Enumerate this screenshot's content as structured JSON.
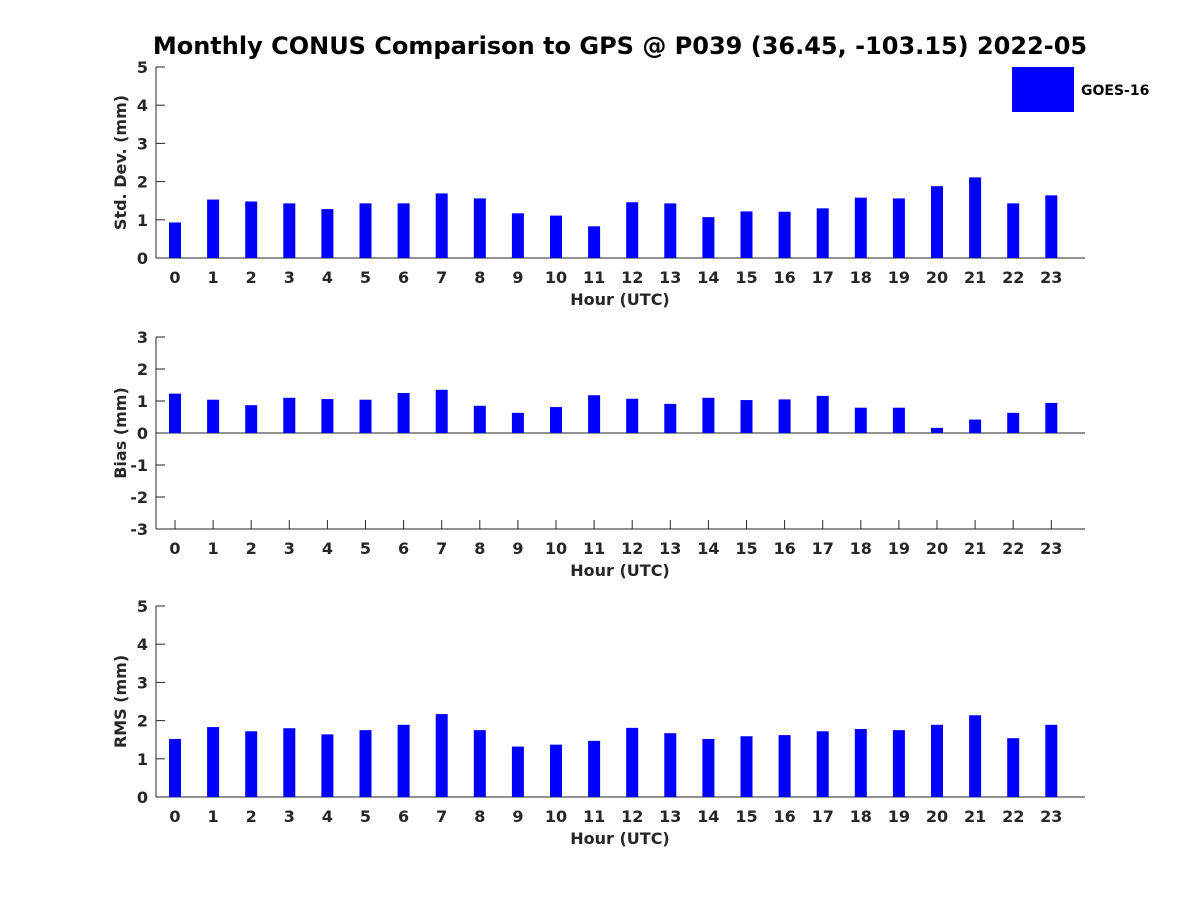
{
  "title": "Monthly CONUS Comparison to GPS @ P039 (36.45, -103.15) 2022-05",
  "legend": {
    "label": "GOES-16",
    "color": "#0000ff"
  },
  "chart_data": [
    {
      "type": "bar",
      "id": "std",
      "categories": [
        "0",
        "1",
        "2",
        "3",
        "4",
        "5",
        "6",
        "7",
        "8",
        "9",
        "10",
        "11",
        "12",
        "13",
        "14",
        "15",
        "16",
        "17",
        "18",
        "19",
        "20",
        "21",
        "22",
        "23"
      ],
      "series": [
        {
          "name": "GOES-16",
          "color": "#0000ff",
          "values": [
            0.93,
            1.53,
            1.48,
            1.43,
            1.28,
            1.43,
            1.43,
            1.69,
            1.56,
            1.17,
            1.11,
            0.83,
            1.46,
            1.43,
            1.07,
            1.22,
            1.21,
            1.3,
            1.58,
            1.56,
            1.88,
            2.11,
            1.43,
            1.64
          ]
        }
      ],
      "xlabel": "Hour (UTC)",
      "ylabel": "Std. Dev. (mm)",
      "ylim": [
        0,
        5
      ],
      "yticks": [
        "0",
        "1",
        "2",
        "3",
        "4",
        "5"
      ],
      "grid": false,
      "legend_position": "top-right"
    },
    {
      "type": "bar",
      "id": "bias",
      "categories": [
        "0",
        "1",
        "2",
        "3",
        "4",
        "5",
        "6",
        "7",
        "8",
        "9",
        "10",
        "11",
        "12",
        "13",
        "14",
        "15",
        "16",
        "17",
        "18",
        "19",
        "20",
        "21",
        "22",
        "23"
      ],
      "series": [
        {
          "name": "GOES-16",
          "color": "#0000ff",
          "values": [
            1.23,
            1.04,
            0.87,
            1.1,
            1.06,
            1.04,
            1.25,
            1.35,
            0.85,
            0.63,
            0.81,
            1.18,
            1.07,
            0.91,
            1.1,
            1.03,
            1.05,
            1.16,
            0.79,
            0.79,
            0.16,
            0.42,
            0.63,
            0.94
          ]
        }
      ],
      "xlabel": "Hour (UTC)",
      "ylabel": "Bias (mm)",
      "ylim": [
        -3,
        3
      ],
      "yticks": [
        "-3",
        "-2",
        "-1",
        "0",
        "1",
        "2",
        "3"
      ],
      "grid": false
    },
    {
      "type": "bar",
      "id": "rms",
      "categories": [
        "0",
        "1",
        "2",
        "3",
        "4",
        "5",
        "6",
        "7",
        "8",
        "9",
        "10",
        "11",
        "12",
        "13",
        "14",
        "15",
        "16",
        "17",
        "18",
        "19",
        "20",
        "21",
        "22",
        "23"
      ],
      "series": [
        {
          "name": "GOES-16",
          "color": "#0000ff",
          "values": [
            1.52,
            1.83,
            1.72,
            1.8,
            1.64,
            1.75,
            1.89,
            2.17,
            1.75,
            1.32,
            1.37,
            1.47,
            1.81,
            1.67,
            1.52,
            1.59,
            1.62,
            1.72,
            1.78,
            1.75,
            1.89,
            2.14,
            1.54,
            1.89
          ]
        }
      ],
      "xlabel": "Hour (UTC)",
      "ylabel": "RMS (mm)",
      "ylim": [
        0,
        5
      ],
      "yticks": [
        "0",
        "1",
        "2",
        "3",
        "4",
        "5"
      ],
      "grid": false
    }
  ]
}
